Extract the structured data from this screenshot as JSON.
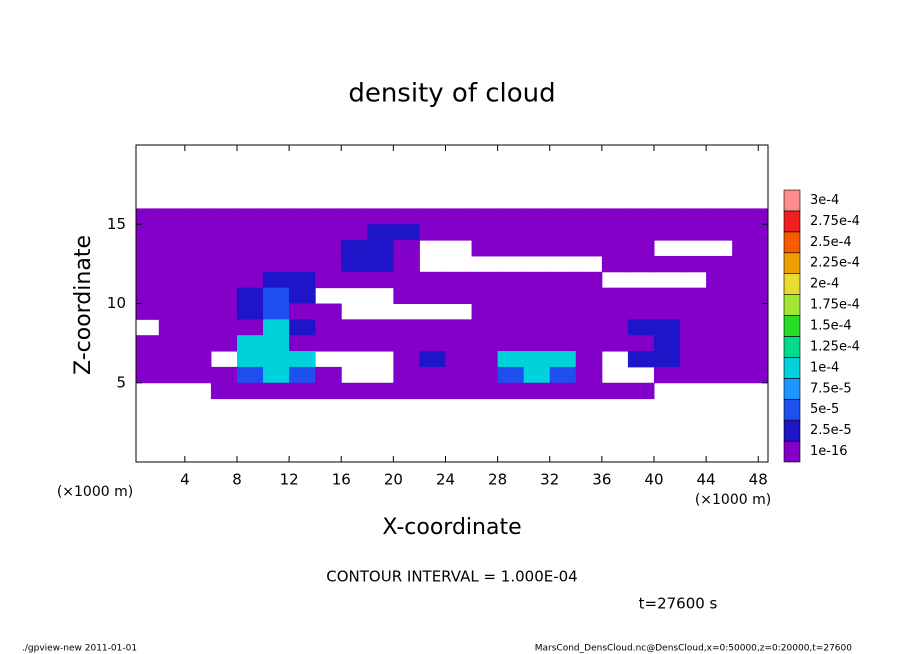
{
  "chart_data": {
    "type": "heatmap",
    "title": "density of cloud",
    "x_label": "X-coordinate",
    "y_label": "Z-coordinate",
    "x_unit": "(×1000 m)",
    "annotation": "CONTOUR INTERVAL = 1.000E-04",
    "time_label": "t=27600 s",
    "footer_left": "./gpview-new   2011-01-01",
    "footer_right": "MarsCond_DensCloud.nc@DensCloud,x=0:50000,z=0:20000,t=27600",
    "xlim": [
      0.25,
      48.75
    ],
    "ylim": [
      0,
      20
    ],
    "xticks": [
      4,
      8,
      12,
      16,
      20,
      24,
      28,
      32,
      36,
      40,
      44,
      48
    ],
    "yticks": [
      5,
      10,
      15
    ],
    "x": [
      1,
      3,
      5,
      7,
      9,
      11,
      13,
      15,
      17,
      19,
      21,
      23,
      25,
      27,
      29,
      31,
      33,
      35,
      37,
      39,
      41,
      43,
      45,
      47,
      49
    ],
    "z": [
      15.5,
      14.5,
      13.5,
      12.5,
      11.5,
      10.5,
      9.5,
      8.5,
      7.5,
      6.5,
      5.5,
      4.5
    ],
    "values": [
      [
        5e-06,
        5e-06,
        5e-06,
        5e-06,
        5e-06,
        5e-06,
        5e-06,
        5e-06,
        5e-06,
        5e-06,
        5e-06,
        5e-06,
        5e-06,
        5e-06,
        5e-06,
        5e-06,
        5e-06,
        5e-06,
        5e-06,
        5e-06,
        5e-06,
        5e-06,
        5e-06,
        5e-06,
        5e-06
      ],
      [
        2e-05,
        2e-05,
        2e-05,
        5e-06,
        5e-06,
        5e-06,
        5e-06,
        5e-06,
        2e-05,
        4e-05,
        4e-05,
        5e-06,
        5e-06,
        5e-06,
        5e-06,
        5e-06,
        5e-06,
        5e-06,
        5e-06,
        5e-06,
        5e-06,
        5e-06,
        5e-06,
        5e-06,
        5e-06
      ],
      [
        2e-05,
        2e-05,
        5e-06,
        5e-06,
        5e-06,
        5e-06,
        5e-06,
        5e-06,
        4e-05,
        4e-05,
        5e-06,
        null,
        null,
        5e-06,
        5e-06,
        5e-06,
        5e-06,
        5e-06,
        5e-06,
        5e-06,
        null,
        null,
        null,
        5e-06,
        5e-06
      ],
      [
        5e-06,
        5e-06,
        5e-06,
        5e-06,
        5e-06,
        5e-06,
        5e-06,
        5e-06,
        4e-05,
        4e-05,
        5e-06,
        null,
        null,
        null,
        null,
        null,
        null,
        null,
        5e-06,
        5e-06,
        5e-06,
        5e-06,
        5e-06,
        5e-06,
        5e-06
      ],
      [
        5e-06,
        5e-06,
        5e-06,
        5e-06,
        5e-06,
        4e-05,
        4e-05,
        5e-06,
        5e-06,
        5e-06,
        5e-06,
        5e-06,
        5e-06,
        5e-06,
        5e-06,
        5e-06,
        5e-06,
        5e-06,
        null,
        null,
        null,
        null,
        5e-06,
        5e-06,
        5e-06
      ],
      [
        5e-06,
        5e-06,
        5e-06,
        5e-06,
        4e-05,
        7e-05,
        4e-05,
        null,
        null,
        null,
        5e-06,
        5e-06,
        5e-06,
        5e-06,
        5e-06,
        5e-06,
        5e-06,
        5e-06,
        5e-06,
        5e-06,
        5e-06,
        5e-06,
        5e-06,
        5e-06,
        5e-06
      ],
      [
        5e-06,
        5e-06,
        2e-05,
        5e-06,
        4e-05,
        7e-05,
        5e-06,
        5e-06,
        null,
        null,
        null,
        null,
        null,
        5e-06,
        5e-06,
        5e-06,
        5e-06,
        5e-06,
        5e-06,
        2e-05,
        2e-05,
        5e-06,
        5e-06,
        5e-06,
        5e-06
      ],
      [
        null,
        5e-06,
        5e-06,
        5e-06,
        5e-06,
        0.00012,
        4e-05,
        5e-06,
        5e-06,
        5e-06,
        5e-06,
        5e-06,
        5e-06,
        5e-06,
        5e-06,
        5e-06,
        5e-06,
        5e-06,
        5e-06,
        4e-05,
        4e-05,
        5e-06,
        5e-06,
        5e-06,
        5e-06
      ],
      [
        5e-06,
        5e-06,
        5e-06,
        5e-06,
        0.00012,
        0.00012,
        2e-05,
        5e-06,
        5e-06,
        5e-06,
        5e-06,
        5e-06,
        5e-06,
        5e-06,
        5e-06,
        5e-06,
        5e-06,
        5e-06,
        5e-06,
        5e-06,
        4e-05,
        5e-06,
        5e-06,
        5e-06,
        5e-06
      ],
      [
        5e-06,
        5e-06,
        5e-06,
        null,
        0.00012,
        0.00012,
        0.00012,
        null,
        null,
        null,
        5e-06,
        4e-05,
        5e-06,
        5e-06,
        0.00012,
        0.00012,
        0.00012,
        5e-06,
        null,
        4e-05,
        4e-05,
        5e-06,
        5e-06,
        5e-06,
        5e-06
      ],
      [
        5e-06,
        5e-06,
        5e-06,
        2e-05,
        7e-05,
        0.00012,
        7e-05,
        5e-06,
        null,
        null,
        5e-06,
        5e-06,
        5e-06,
        5e-06,
        7e-05,
        0.00012,
        7e-05,
        2e-05,
        null,
        null,
        5e-06,
        5e-06,
        5e-06,
        5e-06,
        5e-06
      ],
      [
        null,
        null,
        null,
        5e-06,
        2e-05,
        2e-05,
        2e-05,
        5e-06,
        5e-06,
        5e-06,
        5e-06,
        5e-06,
        5e-06,
        5e-06,
        5e-06,
        5e-06,
        5e-06,
        5e-06,
        5e-06,
        5e-06,
        null,
        null,
        null,
        null,
        null
      ]
    ],
    "levels": [
      {
        "value": 1e-16,
        "label": "1e-16"
      },
      {
        "value": 2.5e-05,
        "label": "2.5e-5"
      },
      {
        "value": 5e-05,
        "label": "5e-5"
      },
      {
        "value": 7.5e-05,
        "label": "7.5e-5"
      },
      {
        "value": 0.0001,
        "label": "1e-4"
      },
      {
        "value": 0.000125,
        "label": "1.25e-4"
      },
      {
        "value": 0.00015,
        "label": "1.5e-4"
      },
      {
        "value": 0.000175,
        "label": "1.75e-4"
      },
      {
        "value": 0.0002,
        "label": "2e-4"
      },
      {
        "value": 0.000225,
        "label": "2.25e-4"
      },
      {
        "value": 0.00025,
        "label": "2.5e-4"
      },
      {
        "value": 0.000275,
        "label": "2.75e-4"
      },
      {
        "value": 0.0003,
        "label": "3e-4"
      }
    ],
    "level_colors": [
      "#8200c8",
      "#1e14c8",
      "#1e50f0",
      "#1e96ff",
      "#00d2dc",
      "#00dc8c",
      "#28dc28",
      "#a0e632",
      "#e6dc32",
      "#f0a000",
      "#fa5a00",
      "#f01e1e",
      "#ff8c8c"
    ]
  }
}
